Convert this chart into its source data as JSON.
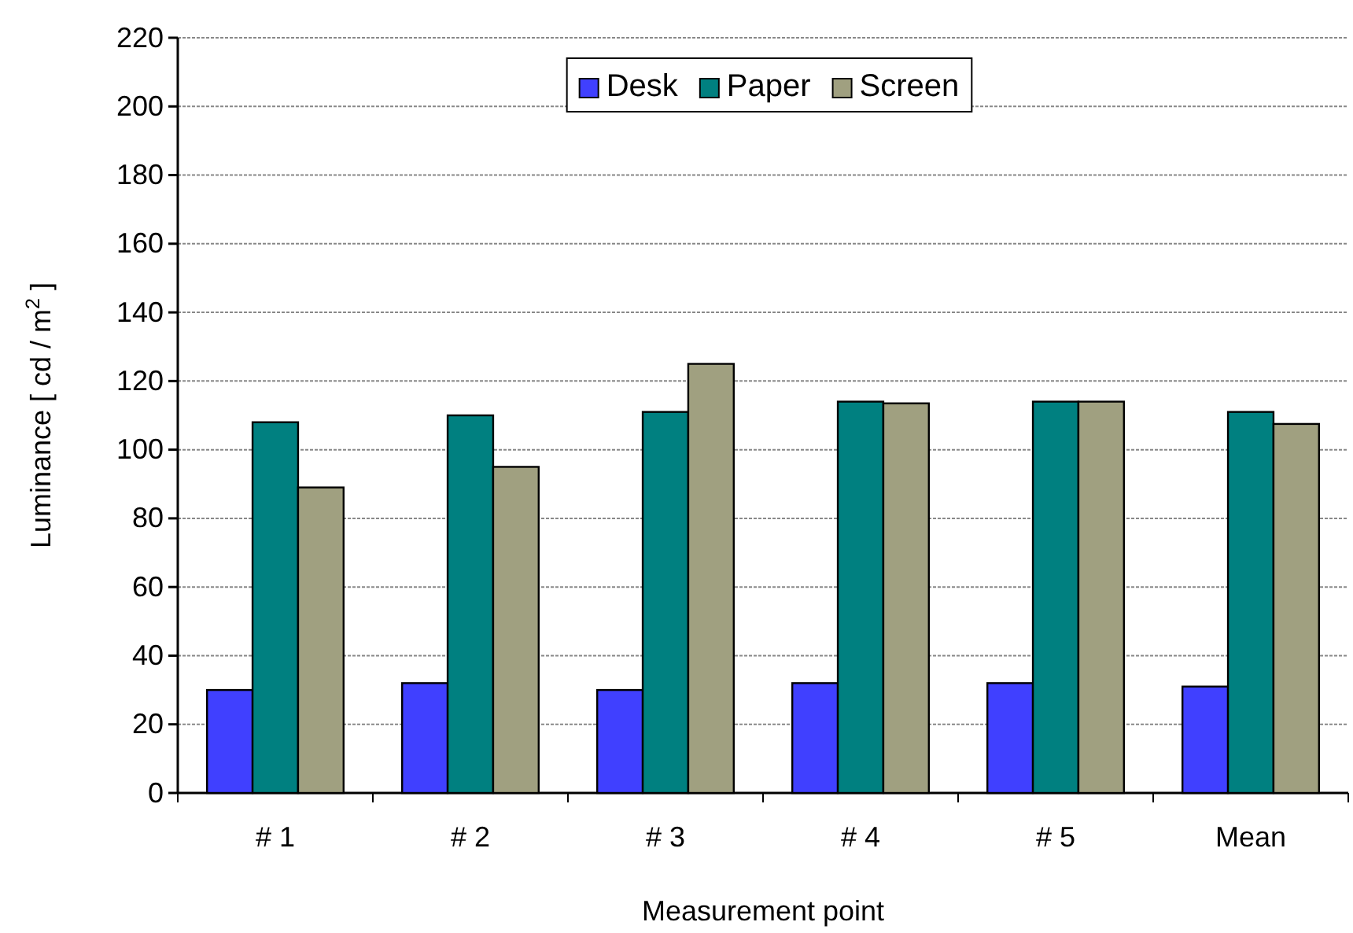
{
  "chart_data": {
    "type": "bar",
    "xlabel": "Measurement point",
    "ylabel": "Luminance [ cd / m$^{2}$ ]",
    "categories": [
      "# 1",
      "# 2",
      "# 3",
      "# 4",
      "# 5",
      "Mean"
    ],
    "series": [
      {
        "name": "Desk",
        "color": "#4040ff",
        "values": [
          30,
          32,
          30,
          32,
          32,
          31
        ]
      },
      {
        "name": "Paper",
        "color": "#008080",
        "values": [
          108,
          110,
          111,
          114,
          114,
          111
        ]
      },
      {
        "name": "Screen",
        "color": "#a0a080",
        "values": [
          89,
          95,
          125,
          113.5,
          114,
          107.5
        ]
      }
    ],
    "ylim": [
      0,
      220
    ],
    "yticks": [
      0,
      20,
      40,
      60,
      80,
      100,
      120,
      140,
      160,
      180,
      200,
      220
    ],
    "grid": "y",
    "legend": "top"
  }
}
